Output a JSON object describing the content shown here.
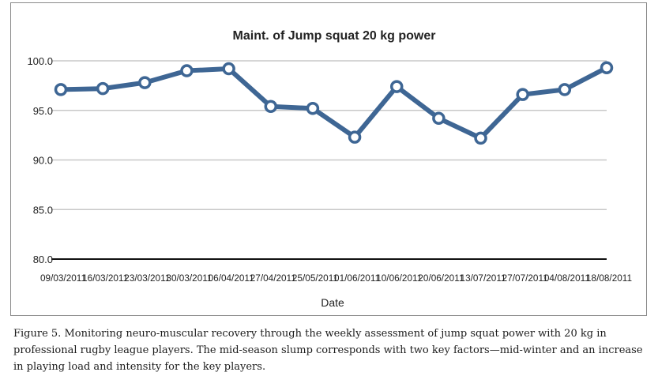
{
  "chart_data": {
    "type": "line",
    "title": "Maint. of Jump squat 20 kg power",
    "xlabel": "Date",
    "ylabel": "",
    "ylim": [
      80,
      100
    ],
    "yticks": [
      "80.0",
      "85.0",
      "90.0",
      "95.0",
      "100.0"
    ],
    "grid": true,
    "categories": [
      "09/03/2011",
      "16/03/2011",
      "23/03/2011",
      "30/03/2011",
      "06/04/2011",
      "27/04/2011",
      "25/05/2011",
      "01/06/2011",
      "10/06/2011",
      "20/06/2011",
      "13/07/2011",
      "27/07/2011",
      "04/08/2011",
      "18/08/2011"
    ],
    "series": [
      {
        "values": [
          97.1,
          97.2,
          97.8,
          99.0,
          99.2,
          95.4,
          95.2,
          92.3,
          97.4,
          94.2,
          92.2,
          96.6,
          97.1,
          99.3
        ],
        "color": "#3e6694"
      }
    ]
  },
  "caption": "Figure 5. Monitoring neuro-muscular recovery through the weekly assessment of jump squat power with 20 kg in professional rugby league players. The mid-season slump corresponds with two key factors—mid-winter and an increase in playing load and intensity for the key players."
}
